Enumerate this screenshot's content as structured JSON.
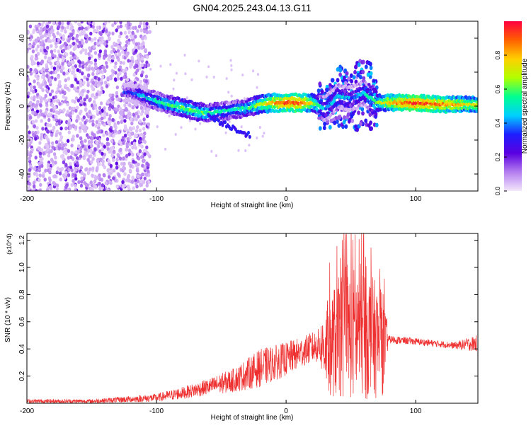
{
  "title": "GN04.2025.243.04.13.G11",
  "chart_data": [
    {
      "type": "heatmap",
      "name": "spectrogram",
      "xlabel": "Height of straight line (km)",
      "ylabel": "Frequency (Hz)",
      "xlim": [
        -200,
        148
      ],
      "ylim": [
        -50,
        50
      ],
      "x_ticks": [
        -200,
        -100,
        0,
        100
      ],
      "y_ticks": [
        -40,
        -20,
        0,
        20,
        40
      ],
      "colorbar": {
        "label": "Normalized spectral amplitude",
        "range": [
          0,
          1
        ],
        "ticks": [
          "0.0",
          "0.2",
          "0.4",
          "0.6",
          "0.8"
        ],
        "colors": [
          "#f3e8fb",
          "#b57ef0",
          "#5a00e0",
          "#1e1eff",
          "#00d0ff",
          "#00ff90",
          "#b0ff00",
          "#ffd000",
          "#ff6000",
          "#ff0040"
        ]
      },
      "ridge": [
        {
          "x": -120,
          "f": 8,
          "a": 0.3
        },
        {
          "x": -110,
          "f": 6,
          "a": 0.45
        },
        {
          "x": -100,
          "f": 3,
          "a": 0.5
        },
        {
          "x": -90,
          "f": 1,
          "a": 0.55
        },
        {
          "x": -80,
          "f": -1,
          "a": 0.6
        },
        {
          "x": -70,
          "f": -3,
          "a": 0.6
        },
        {
          "x": -60,
          "f": -4,
          "a": 0.55
        },
        {
          "x": -50,
          "f": -3,
          "a": 0.5
        },
        {
          "x": -40,
          "f": -2,
          "a": 0.5
        },
        {
          "x": -30,
          "f": -1,
          "a": 0.55
        },
        {
          "x": -20,
          "f": 1,
          "a": 0.65
        },
        {
          "x": -10,
          "f": 2,
          "a": 0.8
        },
        {
          "x": 0,
          "f": 2,
          "a": 0.9
        },
        {
          "x": 10,
          "f": 2,
          "a": 0.9
        },
        {
          "x": 20,
          "f": 2,
          "a": 0.7
        },
        {
          "x": 30,
          "f": -2,
          "a": 0.4
        },
        {
          "x": 40,
          "f": 6,
          "a": 0.45
        },
        {
          "x": 50,
          "f": 4,
          "a": 0.4
        },
        {
          "x": 60,
          "f": 8,
          "a": 0.45
        },
        {
          "x": 70,
          "f": 2,
          "a": 0.6
        },
        {
          "x": 80,
          "f": 2,
          "a": 0.8
        },
        {
          "x": 100,
          "f": 2,
          "a": 0.95
        },
        {
          "x": 120,
          "f": 1,
          "a": 0.85
        },
        {
          "x": 140,
          "f": 1,
          "a": 0.75
        }
      ]
    },
    {
      "type": "line",
      "name": "snr",
      "xlabel": "Height of straight line (km)",
      "ylabel": "SNR (10 * v/v)",
      "y_multiplier": "(x10^4)",
      "xlim": [
        -200,
        148
      ],
      "ylim": [
        0,
        1.25
      ],
      "x_ticks": [
        -200,
        -100,
        0,
        100
      ],
      "y_ticks": [
        0.2,
        0.4,
        0.6,
        0.8,
        1.0,
        1.2
      ],
      "color": "#ee3030",
      "envelope": [
        {
          "x": -200,
          "lo": 0.0,
          "hi": 0.03
        },
        {
          "x": -150,
          "lo": 0.0,
          "hi": 0.03
        },
        {
          "x": -100,
          "lo": 0.01,
          "hi": 0.07
        },
        {
          "x": -80,
          "lo": 0.03,
          "hi": 0.12
        },
        {
          "x": -60,
          "lo": 0.06,
          "hi": 0.18
        },
        {
          "x": -40,
          "lo": 0.08,
          "hi": 0.26
        },
        {
          "x": -20,
          "lo": 0.12,
          "hi": 0.4
        },
        {
          "x": 0,
          "lo": 0.2,
          "hi": 0.45
        },
        {
          "x": 15,
          "lo": 0.28,
          "hi": 0.5
        },
        {
          "x": 25,
          "lo": 0.3,
          "hi": 0.55
        },
        {
          "x": 33,
          "lo": 0.05,
          "hi": 0.8
        },
        {
          "x": 45,
          "lo": 0.02,
          "hi": 1.0
        },
        {
          "x": 60,
          "lo": 0.02,
          "hi": 1.05
        },
        {
          "x": 75,
          "lo": 0.05,
          "hi": 0.8
        },
        {
          "x": 79,
          "lo": 0.44,
          "hi": 0.5
        },
        {
          "x": 100,
          "lo": 0.43,
          "hi": 0.48
        },
        {
          "x": 130,
          "lo": 0.4,
          "hi": 0.45
        },
        {
          "x": 146,
          "lo": 0.38,
          "hi": 0.5
        }
      ]
    }
  ]
}
